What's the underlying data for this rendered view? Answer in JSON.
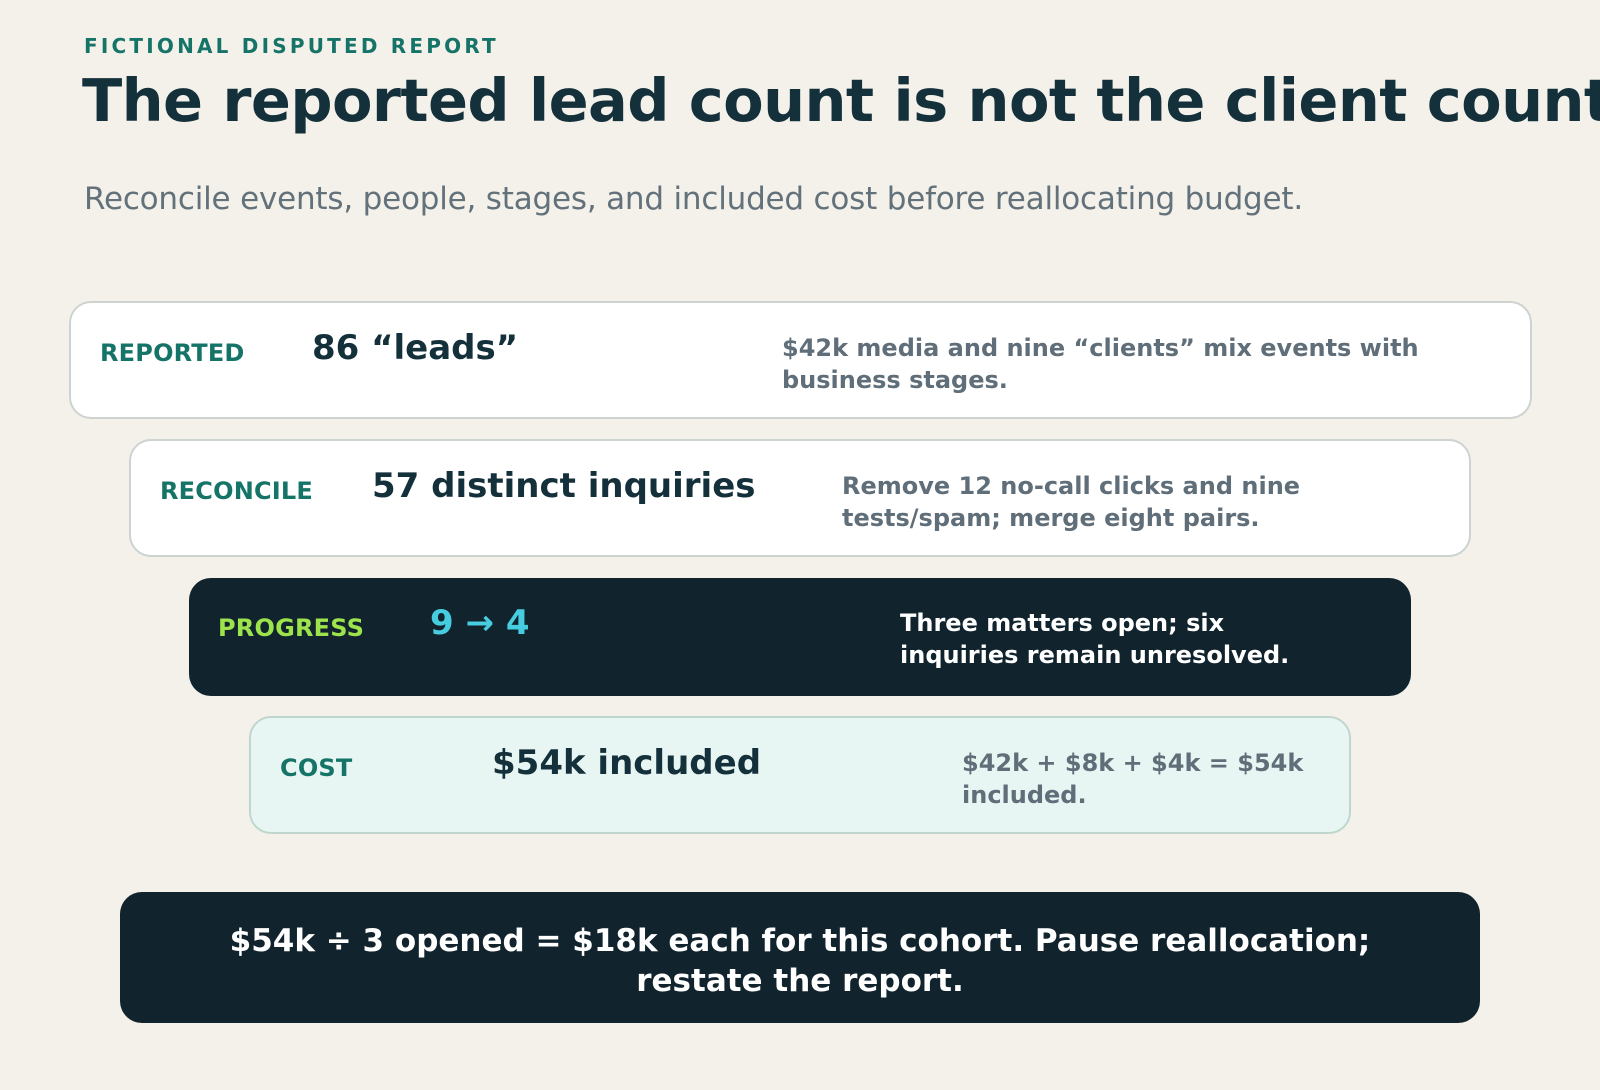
{
  "header": {
    "eyebrow": "FICTIONAL DISPUTED REPORT",
    "title": "The reported lead count is not the client count",
    "subtitle": "Reconcile events, people, stages, and included cost before reallocating budget."
  },
  "rows": [
    {
      "label": "REPORTED",
      "value": "86 “leads”",
      "note": "$42k media and nine “clients” mix events with business stages."
    },
    {
      "label": "RECONCILE",
      "value": "57 distinct inquiries",
      "note": "Remove 12 no-call clicks and nine tests/spam; merge eight pairs."
    },
    {
      "label": "PROGRESS",
      "value": "9 → 4",
      "note": "Three matters open; six inquiries remain unresolved."
    },
    {
      "label": "COST",
      "value": "$54k included",
      "note": "$42k + $8k + $4k = $54k included."
    }
  ],
  "conclusion": "$54k ÷ 3 opened = $18k each for this cohort. Pause reallocation; restate the report.",
  "colors": {
    "background": "#f4f1eb",
    "ink": "#14303b",
    "accent_teal": "#157467",
    "dark_panel": "#11232d",
    "progress_label": "#9de34b",
    "progress_value": "#46cee0",
    "cost_panel": "#e8f6f3"
  }
}
